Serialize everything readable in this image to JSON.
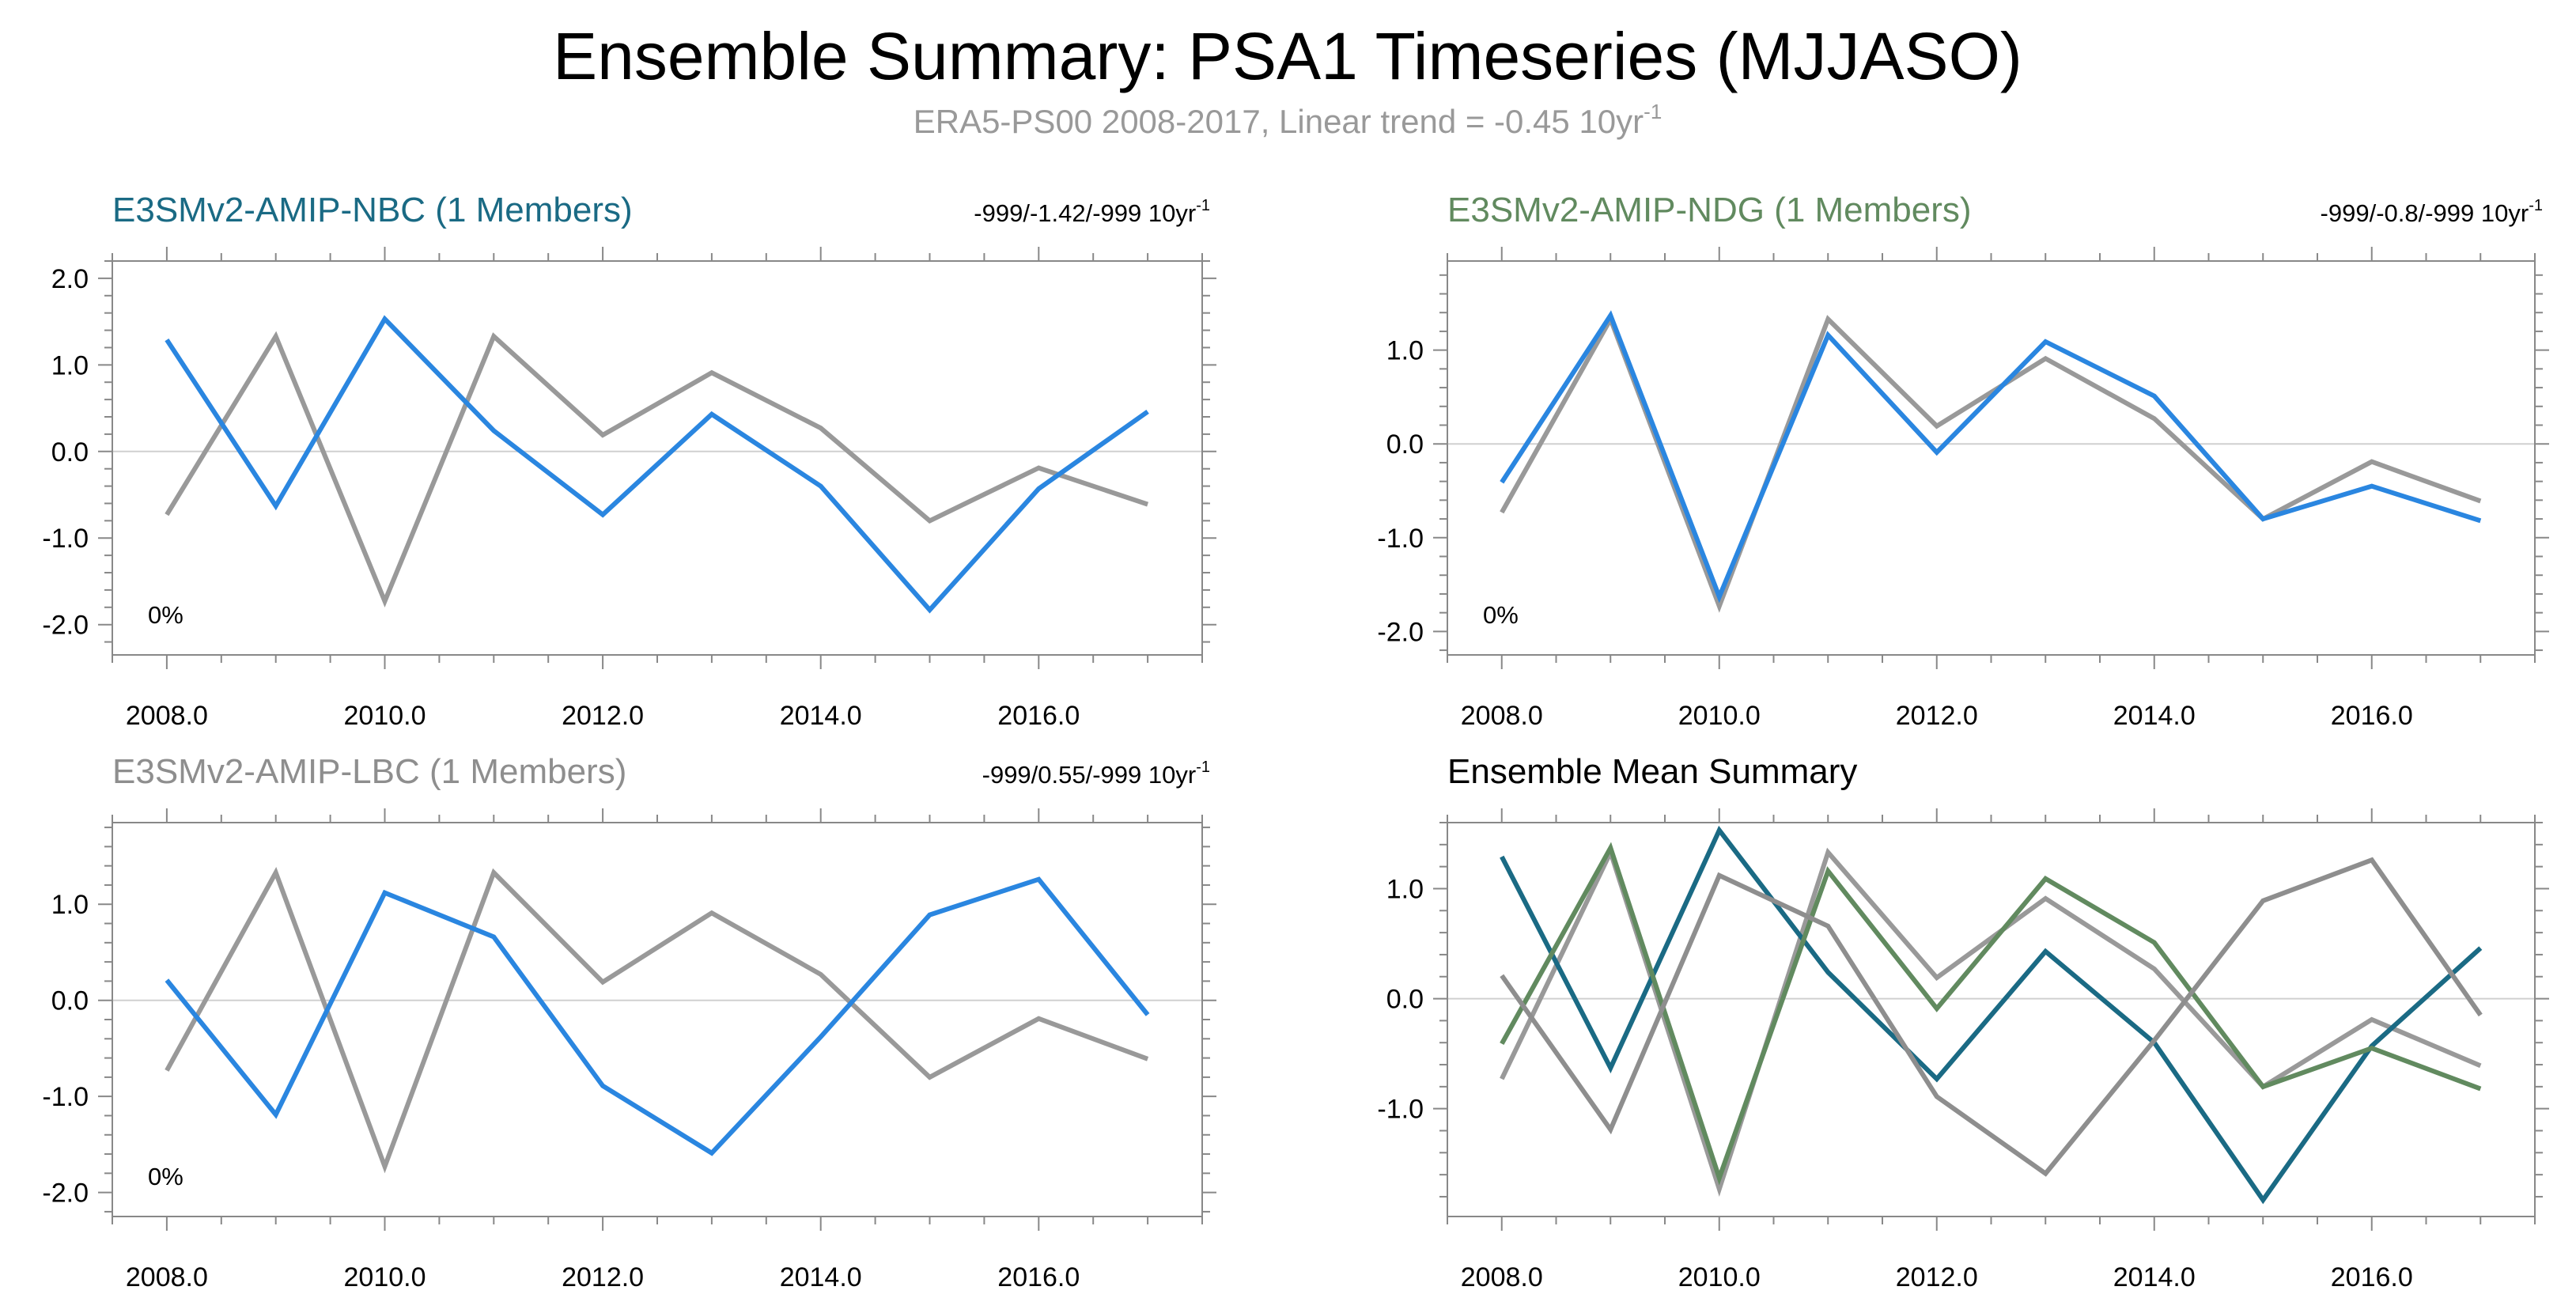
{
  "figure": {
    "title": "Ensemble Summary: PSA1 Timeseries (MJJASO)",
    "subtitle": "ERA5-PS00 2008-2017, Linear trend = -0.45 10yr",
    "subtitle_sup": "-1"
  },
  "chart_data": [
    {
      "type": "line",
      "title": "E3SMv2-AMIP-NBC (1 Members)",
      "title_color": "#1a6a84",
      "trend_label": "-999/-1.42/-999 10yr",
      "trend_sup": "-1",
      "pct_label": "0%",
      "xlim": [
        2007.5,
        2017.5
      ],
      "ylim": [
        -2.35,
        2.2
      ],
      "x_ticks": [
        2008,
        2010,
        2012,
        2014,
        2016
      ],
      "x_tick_labels": [
        "2008.0",
        "2010.0",
        "2012.0",
        "2014.0",
        "2016.0"
      ],
      "y_ticks": [
        -2,
        -1,
        0,
        1,
        2
      ],
      "y_tick_labels": [
        "-2.0",
        "-1.0",
        "0.0",
        "1.0",
        "2.0"
      ],
      "x": [
        2008,
        2009,
        2010,
        2011,
        2012,
        2013,
        2014,
        2015,
        2016,
        2017
      ],
      "series": [
        {
          "color": "#999999",
          "values": [
            -0.73,
            1.33,
            -1.73,
            1.33,
            0.19,
            0.91,
            0.27,
            -0.8,
            -0.19,
            -0.61
          ]
        },
        {
          "color": "#2a86e0",
          "values": [
            1.29,
            -0.63,
            1.53,
            0.24,
            -0.73,
            0.43,
            -0.4,
            -1.83,
            -0.43,
            0.46
          ]
        }
      ]
    },
    {
      "type": "line",
      "title": "E3SMv2-AMIP-NDG (1 Members)",
      "title_color": "#618a5f",
      "trend_label": "-999/-0.8/-999 10yr",
      "trend_sup": "-1",
      "pct_label": "0%",
      "xlim": [
        2007.5,
        2017.5
      ],
      "ylim": [
        -2.25,
        1.95
      ],
      "x_ticks": [
        2008,
        2010,
        2012,
        2014,
        2016
      ],
      "x_tick_labels": [
        "2008.0",
        "2010.0",
        "2012.0",
        "2014.0",
        "2016.0"
      ],
      "y_ticks": [
        -2,
        -1,
        0,
        1
      ],
      "y_tick_labels": [
        "-2.0",
        "-1.0",
        "0.0",
        "1.0"
      ],
      "x": [
        2008,
        2009,
        2010,
        2011,
        2012,
        2013,
        2014,
        2015,
        2016,
        2017
      ],
      "series": [
        {
          "color": "#999999",
          "values": [
            -0.73,
            1.33,
            -1.73,
            1.33,
            0.19,
            0.91,
            0.27,
            -0.8,
            -0.19,
            -0.61
          ]
        },
        {
          "color": "#2a86e0",
          "values": [
            -0.41,
            1.37,
            -1.63,
            1.16,
            -0.09,
            1.09,
            0.51,
            -0.8,
            -0.45,
            -0.82
          ]
        }
      ]
    },
    {
      "type": "line",
      "title": "E3SMv2-AMIP-LBC (1 Members)",
      "title_color": "#8e8e8e",
      "trend_label": "-999/0.55/-999 10yr",
      "trend_sup": "-1",
      "pct_label": "0%",
      "xlim": [
        2007.5,
        2017.5
      ],
      "ylim": [
        -2.25,
        1.85
      ],
      "x_ticks": [
        2008,
        2010,
        2012,
        2014,
        2016
      ],
      "x_tick_labels": [
        "2008.0",
        "2010.0",
        "2012.0",
        "2014.0",
        "2016.0"
      ],
      "y_ticks": [
        -2,
        -1,
        0,
        1
      ],
      "y_tick_labels": [
        "-2.0",
        "-1.0",
        "0.0",
        "1.0"
      ],
      "x": [
        2008,
        2009,
        2010,
        2011,
        2012,
        2013,
        2014,
        2015,
        2016,
        2017
      ],
      "series": [
        {
          "color": "#999999",
          "values": [
            -0.73,
            1.33,
            -1.73,
            1.33,
            0.19,
            0.91,
            0.27,
            -0.8,
            -0.19,
            -0.61
          ]
        },
        {
          "color": "#2a86e0",
          "values": [
            0.21,
            -1.19,
            1.12,
            0.66,
            -0.89,
            -1.59,
            -0.38,
            0.89,
            1.26,
            -0.15
          ]
        }
      ]
    },
    {
      "type": "line",
      "title": "Ensemble Mean Summary",
      "title_color": "#000000",
      "trend_label": "",
      "trend_sup": "",
      "pct_label": "",
      "xlim": [
        2007.5,
        2017.5
      ],
      "ylim": [
        -1.98,
        1.6
      ],
      "x_ticks": [
        2008,
        2010,
        2012,
        2014,
        2016
      ],
      "x_tick_labels": [
        "2008.0",
        "2010.0",
        "2012.0",
        "2014.0",
        "2016.0"
      ],
      "y_ticks": [
        -1,
        0,
        1
      ],
      "y_tick_labels": [
        "-1.0",
        "0.0",
        "1.0"
      ],
      "x": [
        2008,
        2009,
        2010,
        2011,
        2012,
        2013,
        2014,
        2015,
        2016,
        2017
      ],
      "series": [
        {
          "color": "#999999",
          "values": [
            -0.73,
            1.33,
            -1.73,
            1.33,
            0.19,
            0.91,
            0.27,
            -0.8,
            -0.19,
            -0.61
          ]
        },
        {
          "color": "#1a6a84",
          "values": [
            1.29,
            -0.63,
            1.53,
            0.24,
            -0.73,
            0.43,
            -0.4,
            -1.83,
            -0.43,
            0.46
          ]
        },
        {
          "color": "#618a5f",
          "values": [
            -0.41,
            1.37,
            -1.63,
            1.16,
            -0.09,
            1.09,
            0.51,
            -0.8,
            -0.45,
            -0.82
          ]
        },
        {
          "color": "#8e8e8e",
          "values": [
            0.21,
            -1.19,
            1.12,
            0.66,
            -0.89,
            -1.59,
            -0.38,
            0.89,
            1.26,
            -0.15
          ]
        }
      ]
    }
  ]
}
